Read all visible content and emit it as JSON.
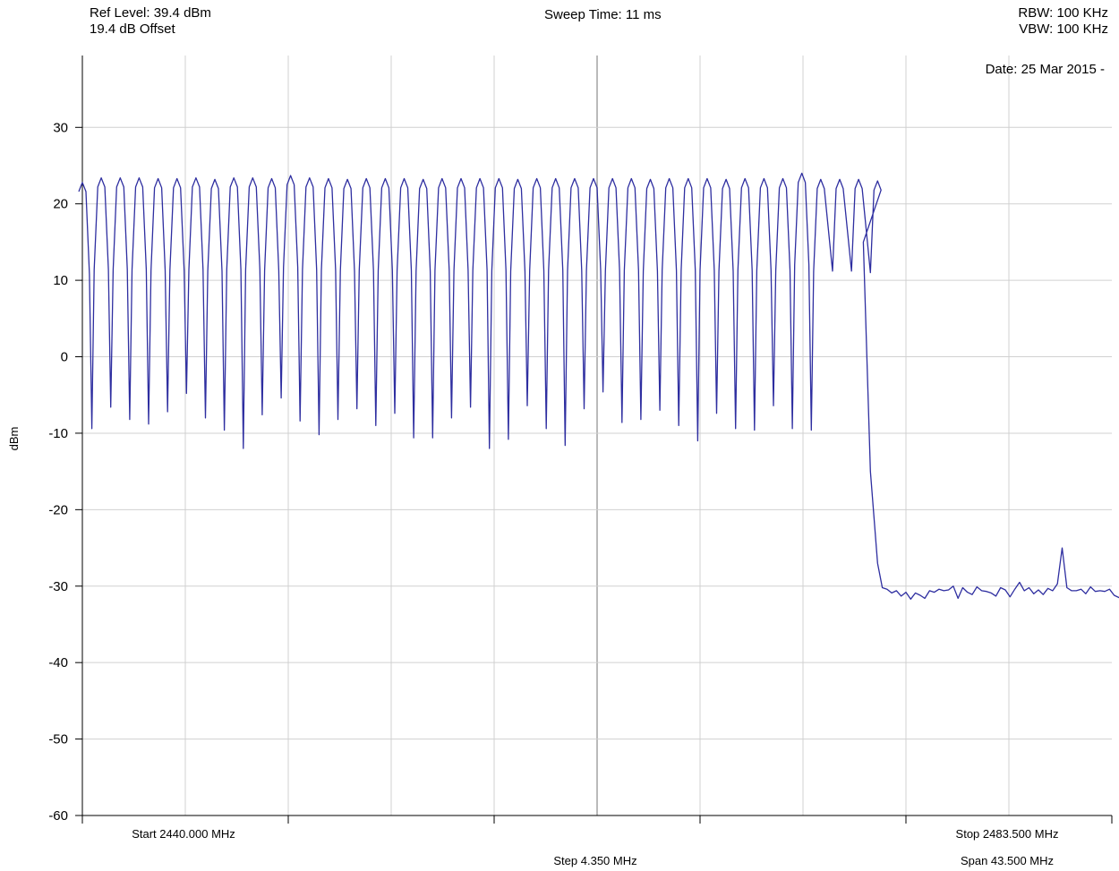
{
  "header": {
    "ref_level": "Ref Level: 39.4 dBm",
    "offset": "19.4 dB Offset",
    "sweep_time": "Sweep Time: 11 ms",
    "rbw": "RBW: 100 KHz",
    "vbw": "VBW: 100 KHz",
    "date": "Date: 25 Mar 2015 -"
  },
  "footer": {
    "start": "Start 2440.000 MHz",
    "stop": "Stop 2483.500 MHz",
    "step": "Step 4.350 MHz",
    "span": "Span 43.500 MHz"
  },
  "colors": {
    "trace": "#2e2ea0",
    "grid": "#d0d0d0",
    "axis": "#000000",
    "center_line": "#a8a8a8"
  },
  "chart_data": {
    "type": "line",
    "ylabel": "dBm",
    "xlabel": "",
    "xlim": [
      2440.0,
      2483.5
    ],
    "ylim": [
      -60,
      39.4
    ],
    "yticks": [
      30,
      20,
      10,
      0,
      -10,
      -20,
      -30,
      -40,
      -50,
      -60
    ],
    "x_divisions": 10,
    "grid": true,
    "series": [
      {
        "hop_start_mhz": 2440.0,
        "hop_step_mhz": 0.8,
        "channel_peaks_dbm": [
          22.8,
          23.4,
          23.4,
          23.4,
          23.3,
          23.3,
          23.4,
          23.2,
          23.4,
          23.4,
          23.3,
          23.7,
          23.4,
          23.3,
          23.2,
          23.3,
          23.3,
          23.3,
          23.2,
          23.3,
          23.3,
          23.3,
          23.3,
          23.2,
          23.3,
          23.3,
          23.3,
          23.3,
          23.3,
          23.3,
          23.2,
          23.3,
          23.3,
          23.3,
          23.2,
          23.3,
          23.3,
          23.3,
          24.0,
          23.2,
          23.2,
          23.2,
          23.0
        ],
        "valley_lows_dbm": [
          -9.4,
          -6.6,
          -8.2,
          -8.8,
          -7.2,
          -4.8,
          -8.0,
          -9.6,
          -12.0,
          -7.6,
          -5.4,
          -8.4,
          -10.2,
          -8.2,
          -6.8,
          -9.0,
          -7.4,
          -10.6,
          -10.6,
          -8.0,
          -6.6,
          -12.0,
          -10.8,
          -6.4,
          -9.4,
          -11.6,
          -6.8,
          -4.6,
          -8.6,
          -8.2,
          -7.0,
          -9.0,
          -11.0,
          -7.4,
          -9.4,
          -9.6,
          -6.4,
          -9.4,
          -9.6
        ],
        "edge_points": [
          [
            2473.0,
            15.0
          ],
          [
            2473.3,
            -15.0
          ],
          [
            2473.6,
            -27.0
          ],
          [
            2473.8,
            -30.2
          ]
        ],
        "noise_floor_start_mhz": 2474.0,
        "noise_floor_step_mhz": 0.2,
        "noise_floor_dbm": [
          -30.4,
          -30.9,
          -30.6,
          -31.3,
          -30.8,
          -31.7,
          -30.9,
          -31.2,
          -31.6,
          -30.6,
          -30.8,
          -30.4,
          -30.6,
          -30.5,
          -30.0,
          -31.6,
          -30.2,
          -30.8,
          -31.1,
          -30.1,
          -30.6,
          -30.7,
          -30.9,
          -31.3,
          -30.2,
          -30.5,
          -31.4,
          -30.4,
          -29.5,
          -30.6,
          -30.2,
          -31.0,
          -30.5,
          -31.1,
          -30.3,
          -30.6,
          -29.7,
          -25.0,
          -30.2,
          -30.6,
          -30.6,
          -30.4,
          -31.0,
          -30.1,
          -30.7,
          -30.6,
          -30.7,
          -30.4,
          -31.2,
          -31.5,
          -30.9,
          -31.2,
          -30.5,
          -30.1,
          -30.8,
          -30.4,
          -30.5,
          -31.1,
          -30.2,
          -30.4,
          -30.2,
          -31.2,
          -30.3,
          -30.8,
          -30.6,
          -31.2,
          -30.9,
          -30.4,
          -29.3,
          -30.7,
          -30.4,
          -31.1,
          -30.5,
          -30.9,
          -29.5,
          -30.5,
          -30.4,
          -31.3,
          -30.8,
          -30.8,
          -31.2,
          -30.8,
          -30.9,
          -30.0,
          -30.7,
          -30.2,
          -29.5,
          -30.2,
          -30.7,
          -31.5,
          -30.4,
          -31.0,
          -30.9,
          -30.5,
          -30.9,
          -31.1,
          -30.0,
          -30.6
        ]
      }
    ]
  }
}
